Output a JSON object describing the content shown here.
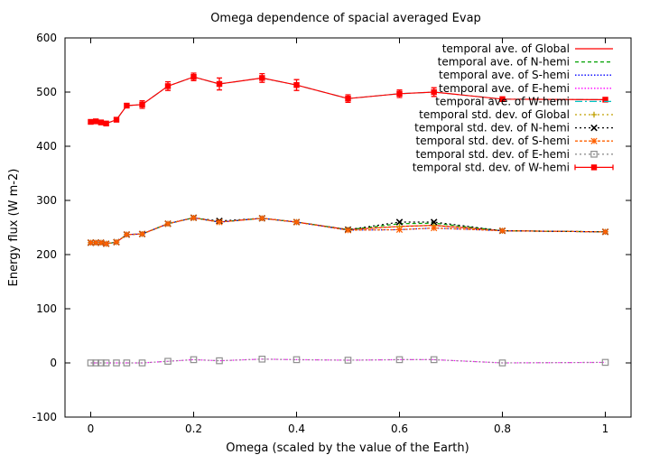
{
  "chart_data": {
    "type": "line",
    "title": "Omega dependence of spacial averaged Evap",
    "xlabel": "Omega (scaled by the value of the Earth)",
    "ylabel": "Energy flux (W m-2)",
    "xlim": [
      -0.05,
      1.05
    ],
    "ylim": [
      -100,
      600
    ],
    "xticks": [
      0,
      0.2,
      0.4,
      0.6,
      0.8,
      1
    ],
    "xtick_labels": [
      "0",
      "0.2",
      "0.4",
      "0.6",
      "0.8",
      "1"
    ],
    "yticks": [
      -100,
      0,
      100,
      200,
      300,
      400,
      500,
      600
    ],
    "ytick_labels": [
      "-100",
      "0",
      "100",
      "200",
      "300",
      "400",
      "500",
      "600"
    ],
    "grid": false,
    "legend_position": "top-right",
    "x": [
      0,
      0.01,
      0.02,
      0.03,
      0.05,
      0.07,
      0.1,
      0.15,
      0.2,
      0.25,
      0.333,
      0.4,
      0.5,
      0.6,
      0.667,
      0.8,
      1.0
    ],
    "series": [
      {
        "name": "temporal ave. of Global",
        "color": "#ff0000",
        "dash": "",
        "marker": "none",
        "values": [
          222,
          222,
          222,
          220,
          223,
          237,
          238,
          257,
          268,
          260,
          267,
          260,
          246,
          252,
          254,
          244,
          242
        ]
      },
      {
        "name": "temporal ave. of N-hemi",
        "color": "#00a000",
        "dash": "4,3",
        "marker": "none",
        "values": [
          222,
          222,
          222,
          220,
          223,
          237,
          238,
          257,
          268,
          260,
          267,
          260,
          246,
          257,
          258,
          244,
          242
        ]
      },
      {
        "name": "temporal ave. of S-hemi",
        "color": "#0000ff",
        "dash": "1.5,2",
        "marker": "none",
        "values": [
          222,
          222,
          222,
          220,
          223,
          237,
          238,
          257,
          268,
          260,
          267,
          260,
          245,
          246,
          249,
          244,
          242
        ]
      },
      {
        "name": "temporal ave. of E-hemi",
        "color": "#ff00ff",
        "dash": "1.5,2",
        "marker": "none",
        "values": [
          0,
          0,
          0,
          0,
          0,
          0,
          0,
          3,
          6,
          4,
          7,
          6,
          5,
          6,
          6,
          0,
          1
        ]
      },
      {
        "name": "temporal ave. of W-hemi",
        "color": "#00c0c0",
        "dash": "8,3,2,3",
        "marker": "none",
        "values": [
          445,
          446,
          444,
          442,
          449,
          475,
          477,
          511,
          528,
          515,
          526,
          513,
          488,
          497,
          500,
          487,
          486
        ]
      },
      {
        "name": "temporal std. dev. of Global",
        "color": "#c0a000",
        "dash": "2,3",
        "marker": "plus",
        "values": [
          222,
          222,
          222,
          220,
          223,
          237,
          238,
          257,
          268,
          260,
          267,
          260,
          246,
          252,
          254,
          244,
          242
        ]
      },
      {
        "name": "temporal std. dev. of N-hemi",
        "color": "#000000",
        "dash": "2,3",
        "marker": "cross",
        "values": [
          222,
          222,
          222,
          220,
          223,
          237,
          238,
          257,
          268,
          262,
          267,
          260,
          246,
          260,
          260,
          244,
          242
        ]
      },
      {
        "name": "temporal std. dev. of S-hemi",
        "color": "#ff6000",
        "dash": "3,2",
        "marker": "star",
        "values": [
          222,
          222,
          222,
          220,
          223,
          237,
          238,
          257,
          268,
          260,
          267,
          260,
          245,
          246,
          249,
          244,
          242
        ]
      },
      {
        "name": "temporal std. dev. of E-hemi",
        "color": "#909090",
        "dash": "2,3",
        "marker": "box",
        "values": [
          0,
          0,
          0,
          0,
          0,
          0,
          0,
          3,
          6,
          4,
          7,
          6,
          5,
          6,
          6,
          0,
          1
        ]
      },
      {
        "name": "temporal std. dev. of W-hemi",
        "color": "#ff0000",
        "dash": "",
        "marker": "filledbox",
        "values": [
          445,
          446,
          444,
          442,
          449,
          475,
          477,
          511,
          528,
          515,
          526,
          513,
          488,
          497,
          500,
          487,
          486
        ],
        "errors": [
          3,
          3,
          3,
          3,
          3,
          4,
          7,
          8,
          7,
          11,
          8,
          10,
          7,
          7,
          8,
          3,
          3
        ]
      }
    ]
  }
}
